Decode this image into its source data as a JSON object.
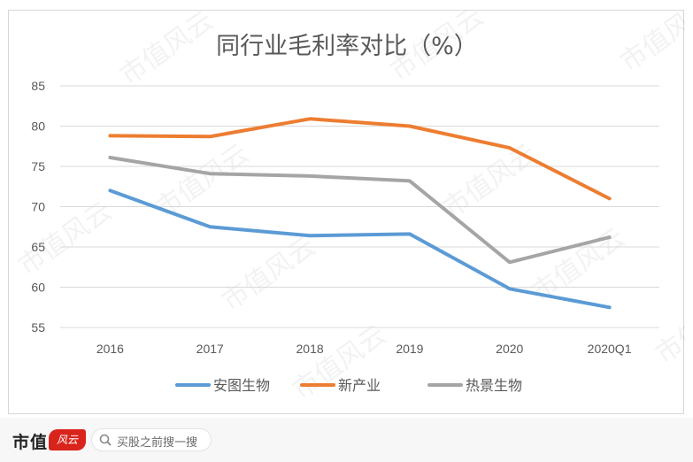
{
  "watermark": {
    "text": "市值风云"
  },
  "footer": {
    "logo_text": "市值",
    "logo_mark_text": "风云",
    "search_placeholder": "买股之前搜一搜"
  },
  "chart_data": {
    "type": "line",
    "title": "同行业毛利率对比（%）",
    "categories": [
      "2016",
      "2017",
      "2018",
      "2019",
      "2020",
      "2020Q1"
    ],
    "ylim": [
      55,
      85
    ],
    "yticks": [
      55,
      60,
      65,
      70,
      75,
      80,
      85
    ],
    "grid": true,
    "legend_position": "bottom",
    "series": [
      {
        "name": "安图生物",
        "color": "#5b9bd5",
        "values": [
          72.0,
          67.5,
          66.4,
          66.6,
          59.8,
          57.5
        ]
      },
      {
        "name": "新产业",
        "color": "#ed7d31",
        "values": [
          78.8,
          78.7,
          80.9,
          80.0,
          77.3,
          71.0
        ]
      },
      {
        "name": "热景生物",
        "color": "#a5a5a5",
        "values": [
          76.1,
          74.1,
          73.8,
          73.2,
          63.1,
          66.2
        ]
      }
    ]
  }
}
